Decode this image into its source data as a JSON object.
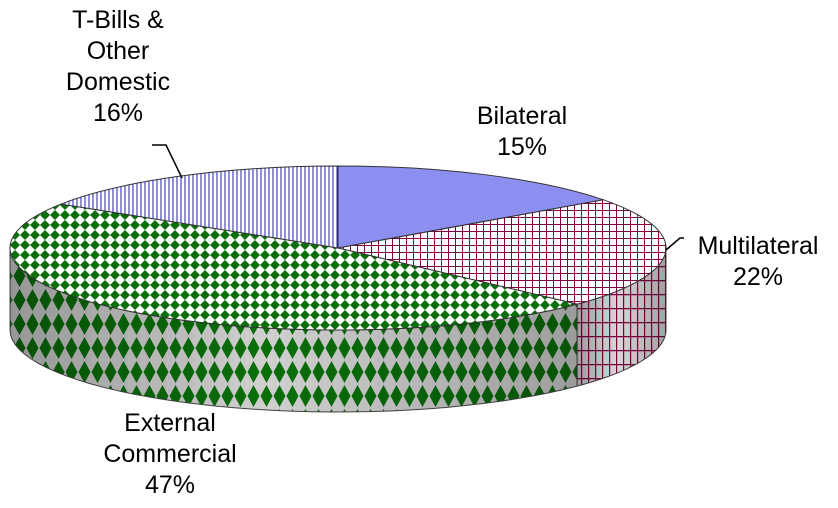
{
  "chart_data": {
    "type": "pie",
    "title": "",
    "three_d": true,
    "slices": [
      {
        "name": "Bilateral",
        "value": 15,
        "label_lines": [
          "Bilateral",
          "15%"
        ],
        "color": "#8c8ff0",
        "pattern": "solid"
      },
      {
        "name": "Multilateral",
        "value": 22,
        "label_lines": [
          "Multilateral",
          "22%"
        ],
        "color": "#800040",
        "pattern": "grid"
      },
      {
        "name": "External Commercial",
        "value": 47,
        "label_lines": [
          "External",
          "Commercial",
          "47%"
        ],
        "color": "#006400",
        "pattern": "diamond"
      },
      {
        "name": "T-Bills & Other Domestic",
        "value": 16,
        "label_lines": [
          "T-Bills &",
          "Other",
          "Domestic",
          "16%"
        ],
        "color": "#1a1ab0",
        "pattern": "vertical-lines"
      }
    ]
  }
}
